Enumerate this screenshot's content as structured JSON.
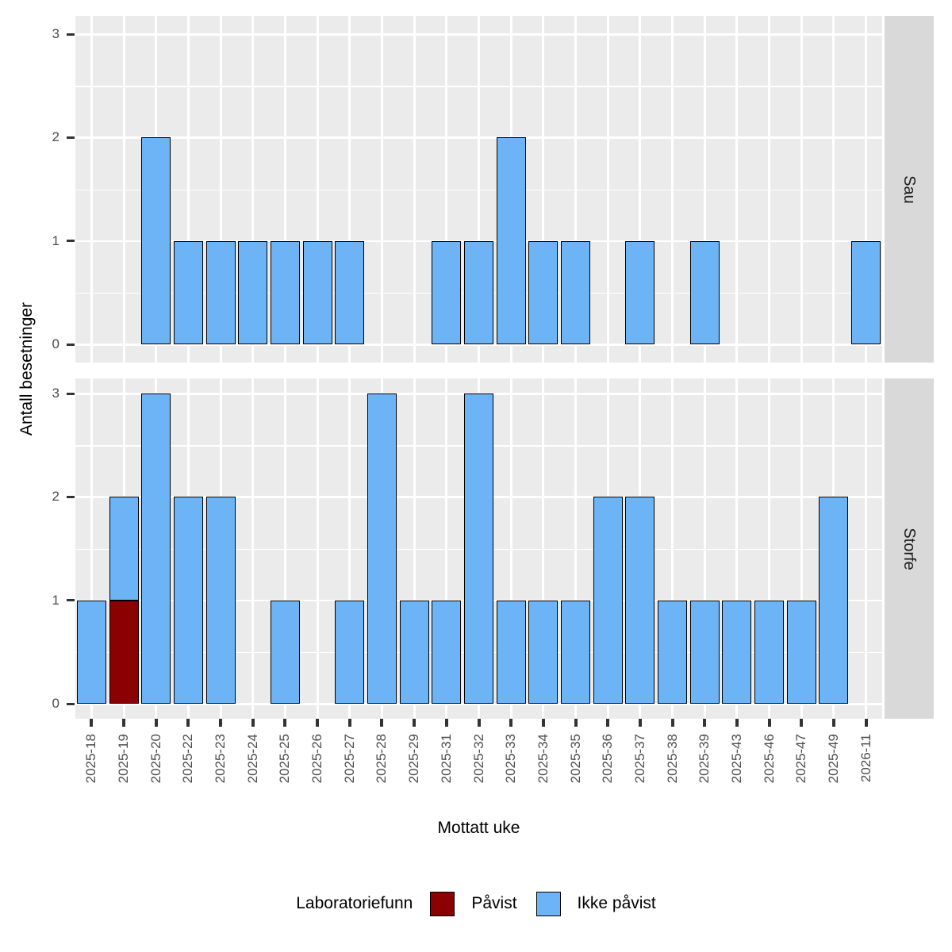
{
  "y_axis": {
    "title": "Antall besetninger",
    "tick_labels": [
      "0",
      "1",
      "2",
      "3"
    ]
  },
  "x_axis": {
    "title": "Mottatt uke"
  },
  "facet_strips": [
    "Sau",
    "Storfe"
  ],
  "legend": {
    "title": "Laboratoriefunn",
    "items": [
      {
        "label": "Påvist",
        "color": "#8B0000"
      },
      {
        "label": "Ikke påvist",
        "color": "#6CB4F6"
      }
    ]
  },
  "colors": {
    "panel_background": "#EBEBEB",
    "strip_background": "#D9D9D9",
    "gridline": "#FFFFFF",
    "tick_mark": "#333333",
    "tick_label": "#4D4D4D",
    "paavist": "#8B0000",
    "ikke_paavist": "#6CB4F6"
  },
  "chart_data": {
    "type": "bar",
    "stacked": true,
    "orientation": "vertical",
    "title": "",
    "xlabel": "Mottatt uke",
    "ylabel": "Antall besetninger",
    "ylim": [
      0,
      3
    ],
    "y_ticks": [
      0,
      1,
      2,
      3
    ],
    "grid": true,
    "legend_position": "bottom",
    "legend_title": "Laboratoriefunn",
    "categories": [
      "2025-18",
      "2025-19",
      "2025-20",
      "2025-22",
      "2025-23",
      "2025-24",
      "2025-25",
      "2025-26",
      "2025-27",
      "2025-28",
      "2025-29",
      "2025-31",
      "2025-32",
      "2025-33",
      "2025-34",
      "2025-35",
      "2025-36",
      "2025-37",
      "2025-38",
      "2025-39",
      "2025-43",
      "2025-46",
      "2025-47",
      "2025-49",
      "2026-11"
    ],
    "facets": [
      {
        "name": "Sau",
        "series": [
          {
            "name": "Påvist",
            "color": "#8B0000",
            "values": [
              0,
              0,
              0,
              0,
              0,
              0,
              0,
              0,
              0,
              0,
              0,
              0,
              0,
              0,
              0,
              0,
              0,
              0,
              0,
              0,
              0,
              0,
              0,
              0,
              0
            ]
          },
          {
            "name": "Ikke påvist",
            "color": "#6CB4F6",
            "values": [
              0,
              0,
              2,
              1,
              1,
              1,
              1,
              1,
              1,
              0,
              0,
              1,
              1,
              2,
              1,
              1,
              0,
              1,
              0,
              1,
              0,
              0,
              0,
              0,
              1
            ]
          }
        ]
      },
      {
        "name": "Storfe",
        "series": [
          {
            "name": "Påvist",
            "color": "#8B0000",
            "values": [
              0,
              1,
              0,
              0,
              0,
              0,
              0,
              0,
              0,
              0,
              0,
              0,
              0,
              0,
              0,
              0,
              0,
              0,
              0,
              0,
              0,
              0,
              0,
              0,
              0
            ]
          },
          {
            "name": "Ikke påvist",
            "color": "#6CB4F6",
            "values": [
              1,
              1,
              3,
              2,
              2,
              0,
              1,
              0,
              1,
              3,
              1,
              1,
              3,
              1,
              1,
              1,
              2,
              2,
              1,
              1,
              1,
              1,
              1,
              2,
              0
            ]
          }
        ]
      }
    ]
  }
}
